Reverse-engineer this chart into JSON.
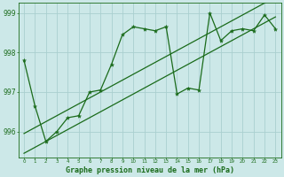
{
  "title": "Graphe pression niveau de la mer (hPa)",
  "bg_color": "#cce8e8",
  "grid_color": "#aacfcf",
  "line_color": "#1a6b1a",
  "x_values": [
    0,
    1,
    2,
    3,
    4,
    5,
    6,
    7,
    8,
    9,
    10,
    11,
    12,
    13,
    14,
    15,
    16,
    17,
    18,
    19,
    20,
    21,
    22,
    23
  ],
  "y_values": [
    997.8,
    996.65,
    995.75,
    996.0,
    996.35,
    996.4,
    997.0,
    997.05,
    997.7,
    998.45,
    998.65,
    998.6,
    998.55,
    998.65,
    996.95,
    997.1,
    997.05,
    999.0,
    998.3,
    998.55,
    998.6,
    998.55,
    998.95,
    998.6
  ],
  "trend_low": [
    995.45,
    995.6,
    995.75,
    995.9,
    996.05,
    996.2,
    996.35,
    996.5,
    996.65,
    996.8,
    996.95,
    997.1,
    997.25,
    997.4,
    997.55,
    997.7,
    997.85,
    998.0,
    998.15,
    998.3,
    998.45,
    998.6,
    998.75,
    998.9
  ],
  "trend_high": [
    995.95,
    996.1,
    996.25,
    996.4,
    996.55,
    996.7,
    996.85,
    997.0,
    997.15,
    997.3,
    997.45,
    997.6,
    997.75,
    997.9,
    998.05,
    998.2,
    998.35,
    998.5,
    998.65,
    998.8,
    998.95,
    999.1,
    999.25,
    999.4
  ],
  "ylim": [
    995.35,
    999.25
  ],
  "yticks": [
    996,
    997,
    998,
    999
  ],
  "xticks": [
    0,
    1,
    2,
    3,
    4,
    5,
    6,
    7,
    8,
    9,
    10,
    11,
    12,
    13,
    14,
    15,
    16,
    17,
    18,
    19,
    20,
    21,
    22,
    23
  ]
}
